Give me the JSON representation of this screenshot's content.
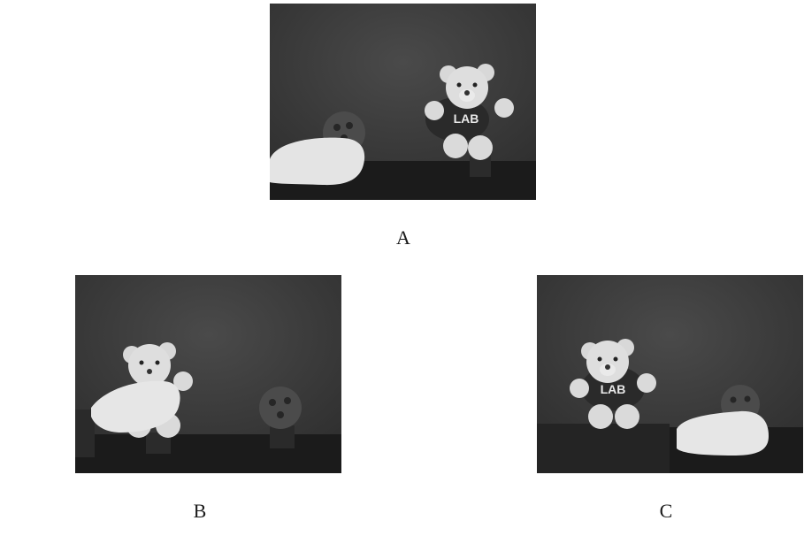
{
  "figure": {
    "panels": [
      {
        "caption": "A",
        "shirt_text": "LAB"
      },
      {
        "caption": "B"
      },
      {
        "caption": "C",
        "shirt_text": "LAB"
      }
    ]
  },
  "colors": {
    "background": "#ffffff",
    "scene_dark": "#3a3a3a",
    "table": "#1b1b1b",
    "bear": "#dcdcdc",
    "shirt": "#2a2a2a",
    "cloth": "#e6e6e6",
    "ball": "#4a4a4a"
  }
}
